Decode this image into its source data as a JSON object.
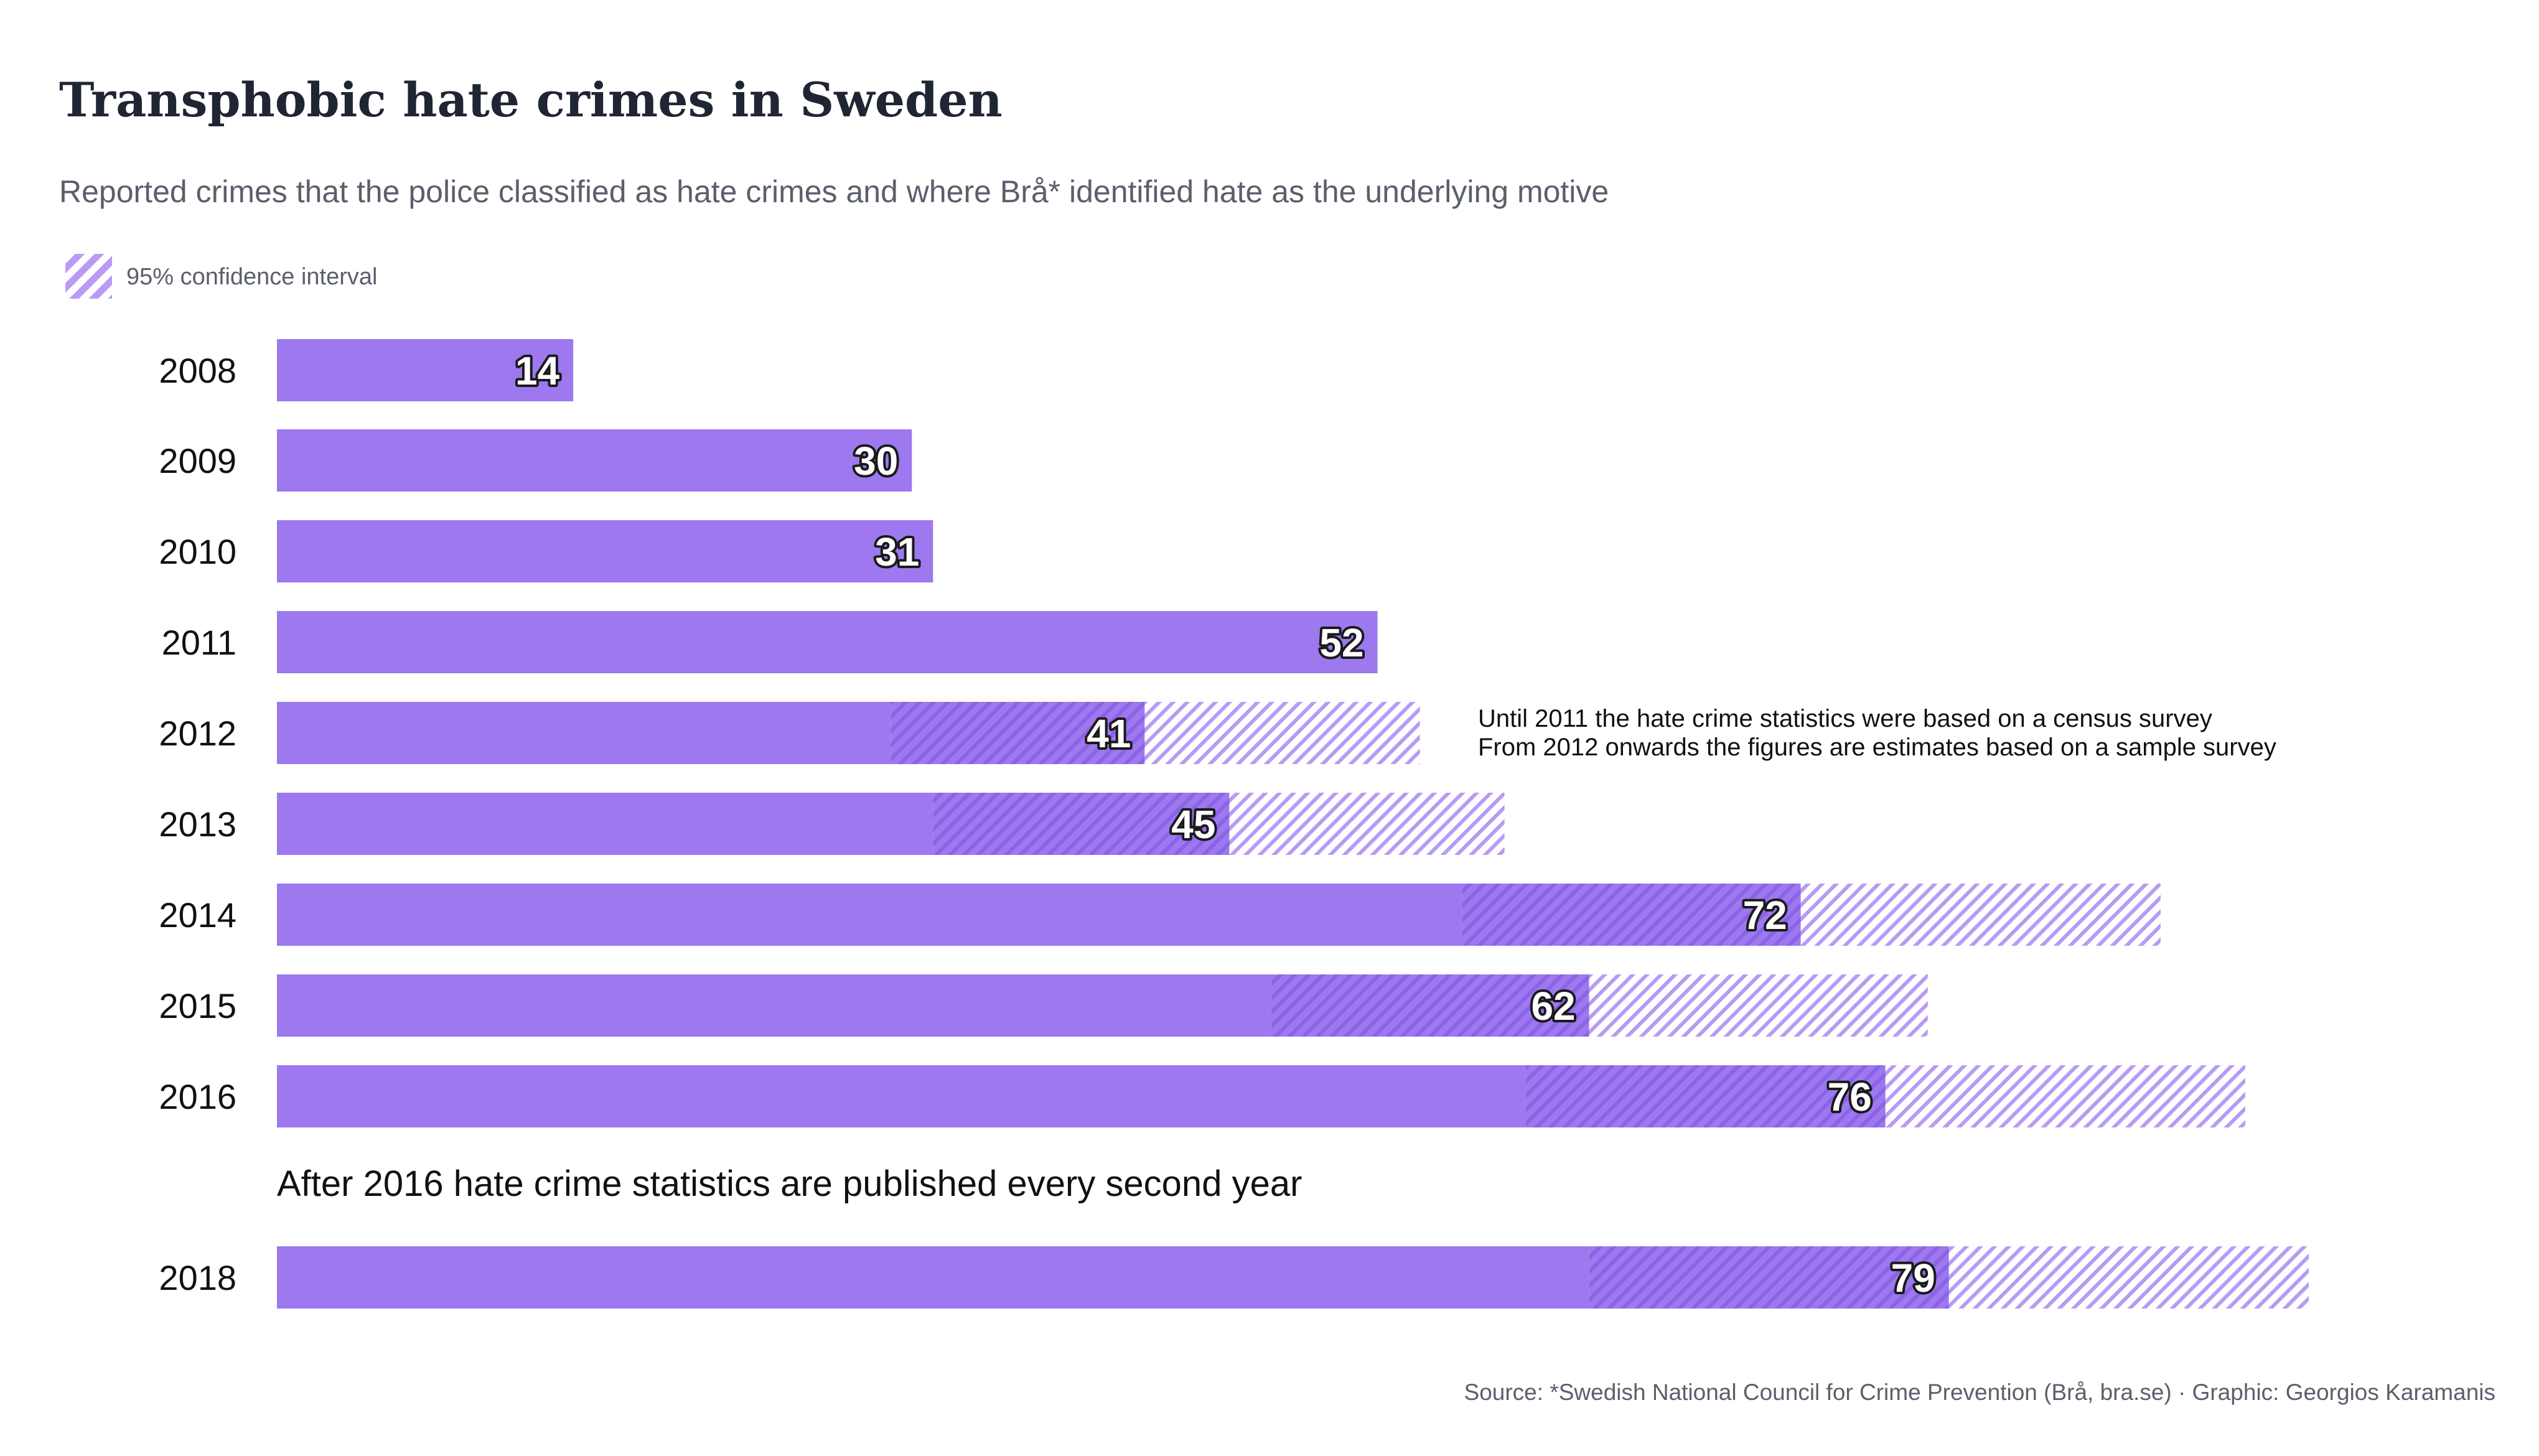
{
  "title": "Transphobic hate crimes in Sweden",
  "subtitle": "Reported crimes that the police classified as hate crimes and where Brå* identified hate as the underlying motive",
  "legend": {
    "label": "95% confidence interval"
  },
  "colors": {
    "bar": "#9d78ef",
    "hatch": "#b89bf4",
    "hatch_dark": "#8a63e6"
  },
  "annotation_survey": [
    "Until 2011 the hate crime statistics were based on a census survey",
    "From 2012 onwards the figures are estimates based on a sample survey"
  ],
  "annotation_biennial": "After 2016 hate crime statistics are published every second year",
  "source": "Source: *Swedish National Council for Crime Prevention (Brå, bra.se) · Graphic: Georgios Karamanis",
  "chart_data": {
    "type": "bar",
    "orientation": "horizontal",
    "categories": [
      "2008",
      "2009",
      "2010",
      "2011",
      "2012",
      "2013",
      "2014",
      "2015",
      "2016",
      "2018"
    ],
    "values": [
      14,
      30,
      31,
      52,
      41,
      45,
      72,
      62,
      76,
      79
    ],
    "ci_low": [
      null,
      null,
      null,
      null,
      29,
      31,
      56,
      47,
      59,
      62
    ],
    "ci_high": [
      null,
      null,
      null,
      null,
      54,
      58,
      89,
      78,
      93,
      96
    ],
    "xlim": [
      0,
      96
    ],
    "grid": false,
    "legend_position": "top-left"
  }
}
